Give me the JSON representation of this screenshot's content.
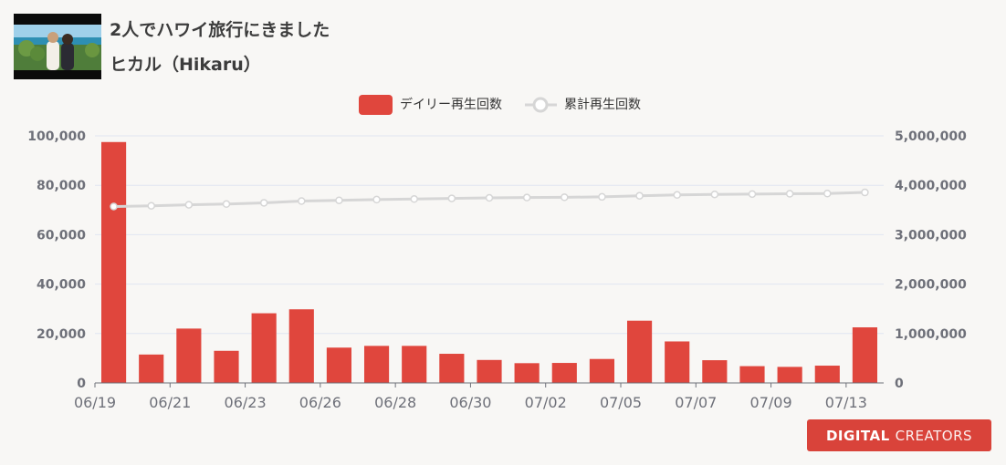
{
  "video": {
    "title": "2人でハワイ旅行にきました",
    "channel": "ヒカル（Hikaru）"
  },
  "logo": {
    "strong": "DIGITAL",
    "light": "CREATORS"
  },
  "colors": {
    "bar": "#e0463d",
    "line": "#d6d6d6",
    "axis_text": "#6e7079",
    "grid": "#e0e6f1",
    "background": "#f8f7f5"
  },
  "chart_data": {
    "type": "bar",
    "legend_position": "top-center",
    "grid": true,
    "legend": [
      "デイリー再生回数",
      "累計再生回数"
    ],
    "x_tick_labels": [
      "06/19",
      "06/21",
      "06/23",
      "06/26",
      "06/28",
      "06/30",
      "07/02",
      "07/05",
      "07/07",
      "07/09",
      "07/13"
    ],
    "left_axis_ticks": [
      "0",
      "20,000",
      "40,000",
      "60,000",
      "80,000",
      "100,000"
    ],
    "right_axis_ticks": [
      "0",
      "1,000,000",
      "2,000,000",
      "3,000,000",
      "4,000,000",
      "5,000,000"
    ],
    "ylim_left": [
      0,
      100000
    ],
    "ylim_right": [
      0,
      5000000
    ],
    "series": [
      {
        "name": "デイリー再生回数",
        "type": "bar",
        "axis": "left",
        "values": [
          97500,
          11500,
          22000,
          13000,
          28200,
          29800,
          14300,
          15000,
          15000,
          11800,
          9300,
          8000,
          8100,
          9700,
          25200,
          16800,
          9200,
          6800,
          6500,
          7000,
          22500
        ]
      },
      {
        "name": "累計再生回数",
        "type": "line",
        "axis": "right",
        "values": [
          3570000,
          3585000,
          3605000,
          3620000,
          3645000,
          3680000,
          3695000,
          3710000,
          3722000,
          3735000,
          3745000,
          3752000,
          3757000,
          3765000,
          3788000,
          3805000,
          3815000,
          3822000,
          3828000,
          3833000,
          3855000
        ]
      }
    ]
  }
}
